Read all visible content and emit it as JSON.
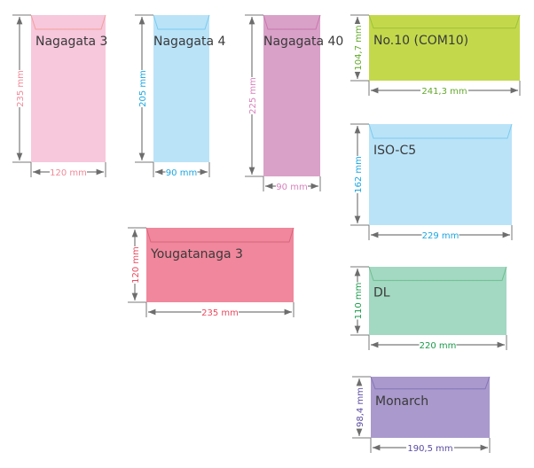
{
  "envelopes": [
    {
      "name": "Nagagata 3",
      "height_label": "235 mm",
      "width_label": "120 mm",
      "fill": "#f7c7dc",
      "flap": "#f2a09a",
      "label_color": "#f08a98"
    },
    {
      "name": "Nagagata 4",
      "height_label": "205 mm",
      "width_label": "90 mm",
      "fill": "#bae3f8",
      "flap": "#7ccbee",
      "label_color": "#1ba6e0"
    },
    {
      "name": "Nagagata 40",
      "height_label": "225 mm",
      "width_label": "90 mm",
      "fill": "#d9a1c8",
      "flap": "#c877ae",
      "label_color": "#d882bd"
    },
    {
      "name": "No.10 (COM10)",
      "height_label": "104,7 mm",
      "width_label": "241,3 mm",
      "fill": "#c3d94b",
      "flap": "#9dc23a",
      "label_color": "#62a82a"
    },
    {
      "name": "ISO-C5",
      "height_label": "162 mm",
      "width_label": "229 mm",
      "fill": "#bae3f8",
      "flap": "#7ccbee",
      "label_color": "#1ba6e0"
    },
    {
      "name": "Yougatanaga 3",
      "height_label": "120 mm",
      "width_label": "235 mm",
      "fill": "#f0879c",
      "flap": "#d9667c",
      "label_color": "#e8495f"
    },
    {
      "name": "DL",
      "height_label": "110 mm",
      "width_label": "220 mm",
      "fill": "#a3d8c2",
      "flap": "#6fbf8f",
      "label_color": "#1a9a4a"
    },
    {
      "name": "Monarch",
      "height_label": "98,4 mm",
      "width_label": "190,5 mm",
      "fill": "#a999cc",
      "flap": "#8676b8",
      "label_color": "#5a4aa0"
    }
  ]
}
